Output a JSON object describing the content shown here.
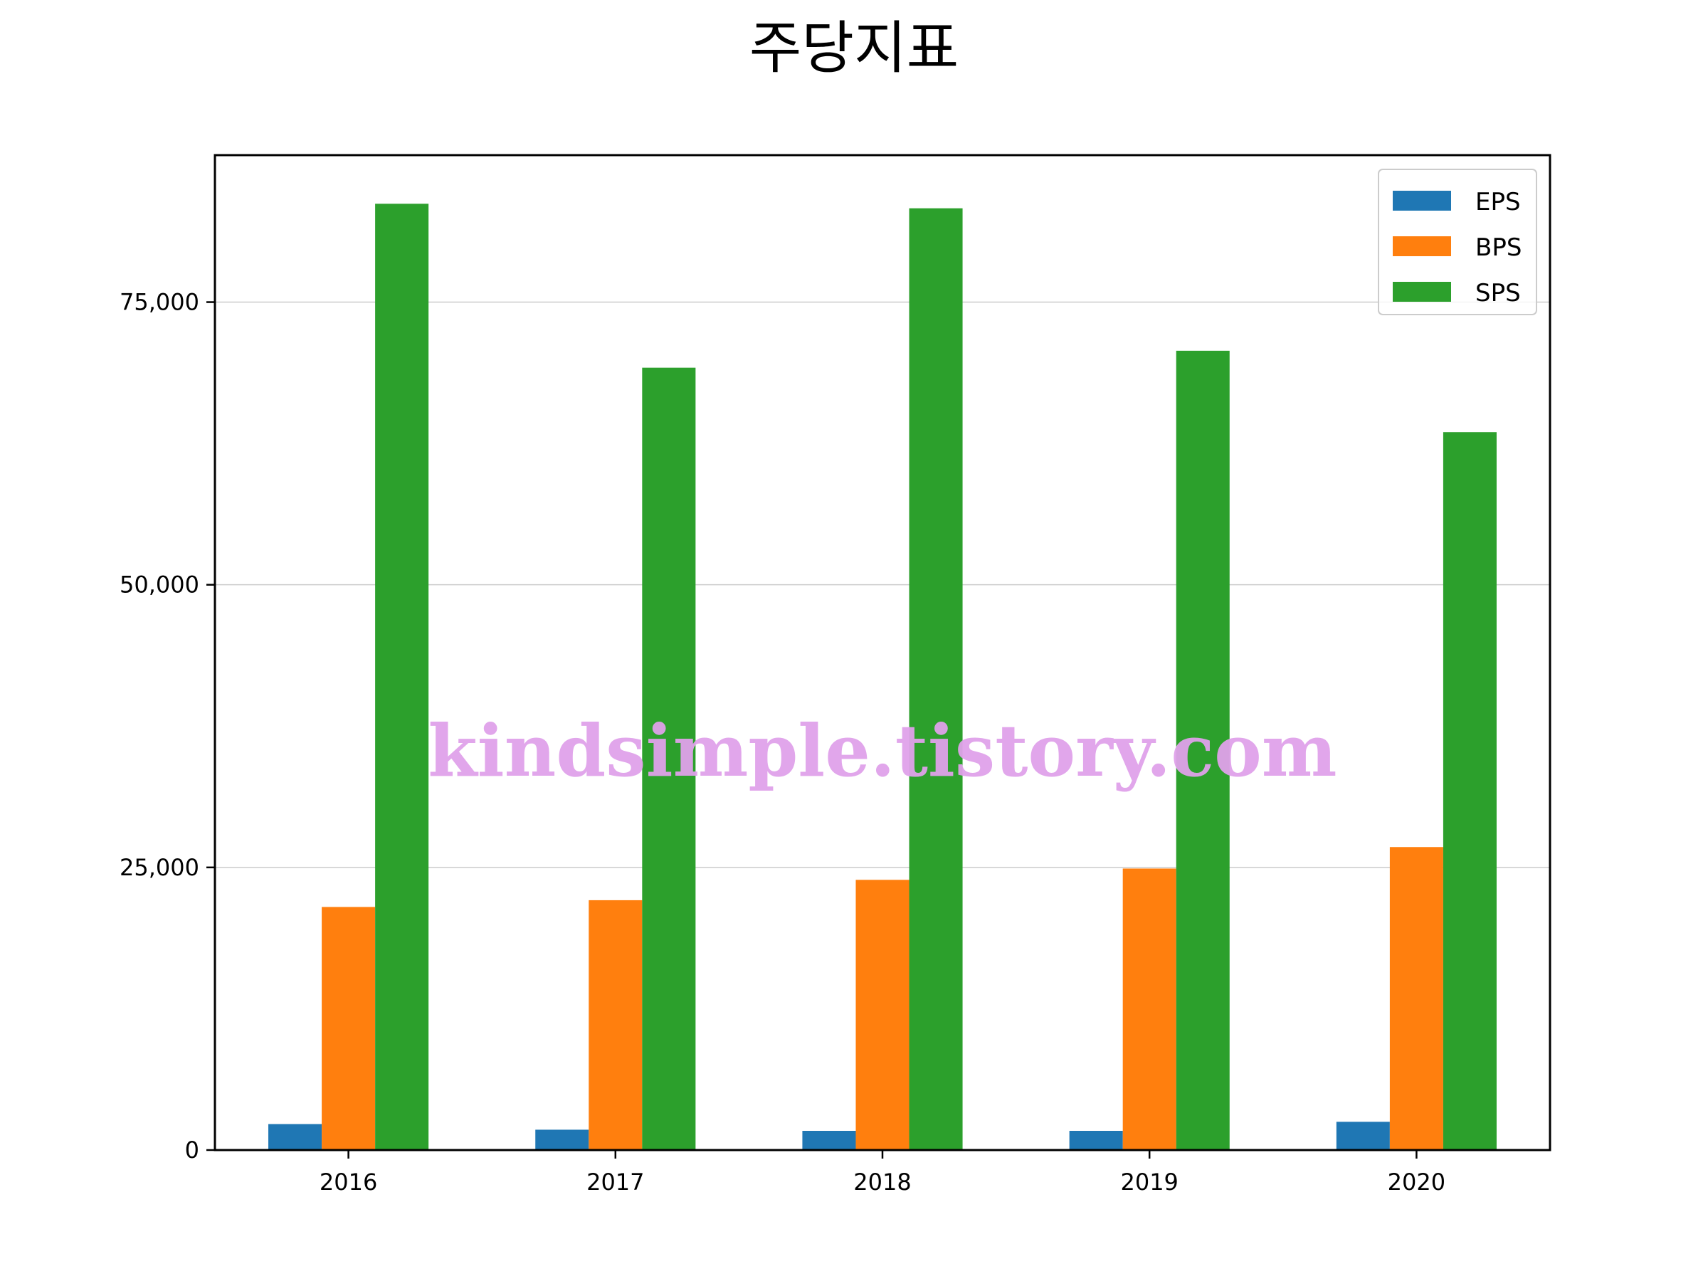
{
  "chart_data": {
    "type": "bar",
    "title": "주당지표",
    "xlabel": "",
    "ylabel": "",
    "categories": [
      "2016",
      "2017",
      "2018",
      "2019",
      "2020"
    ],
    "series": [
      {
        "name": "EPS",
        "color": "#1f77b4",
        "values": [
          2300,
          1800,
          1700,
          1700,
          2500
        ]
      },
      {
        "name": "BPS",
        "color": "#ff7f0e",
        "values": [
          21500,
          22100,
          23900,
          24900,
          26800
        ]
      },
      {
        "name": "SPS",
        "color": "#2ca02c",
        "values": [
          83700,
          69200,
          83300,
          70700,
          63500
        ]
      }
    ],
    "ylim": [
      0,
      88000
    ],
    "yticks": [
      0,
      25000,
      50000,
      75000
    ],
    "ytick_labels": [
      "0",
      "25,000",
      "50,000",
      "75,000"
    ],
    "grid": "y",
    "legend_position": "top-right"
  },
  "watermark": {
    "text": "kindsimple.tistory.com",
    "color": "#e0a2ea"
  }
}
